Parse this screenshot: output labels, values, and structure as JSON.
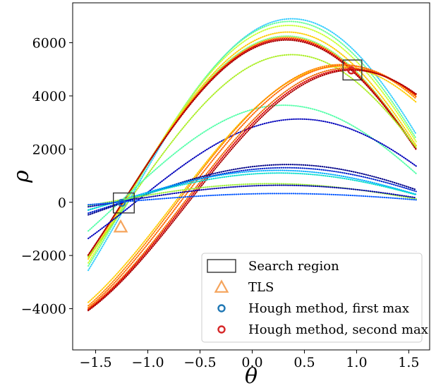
{
  "chart_data": {
    "type": "scatter",
    "title": "",
    "xlabel": "θ",
    "ylabel": "ρ",
    "xlim": [
      -1.72,
      1.7
    ],
    "ylim": [
      -5550,
      7500
    ],
    "grid": false,
    "legend_placement": "lower-right",
    "x_ticks": [
      {
        "value": -1.5,
        "label": "−1.5"
      },
      {
        "value": -1.0,
        "label": "−1.0"
      },
      {
        "value": -0.5,
        "label": "−0.5"
      },
      {
        "value": 0.0,
        "label": "0.0"
      },
      {
        "value": 0.5,
        "label": "0.5"
      },
      {
        "value": 1.0,
        "label": "1.0"
      },
      {
        "value": 1.5,
        "label": "1.5"
      }
    ],
    "y_ticks": [
      {
        "value": -4000,
        "label": "−4000"
      },
      {
        "value": -2000,
        "label": "−2000"
      },
      {
        "value": 0,
        "label": "0"
      },
      {
        "value": 2000,
        "label": "2000"
      },
      {
        "value": 4000,
        "label": "4000"
      },
      {
        "value": 6000,
        "label": "6000"
      }
    ],
    "curve_theta_range": [
      -1.5708,
      1.5708
    ],
    "sinusoid_curves": [
      {
        "amplitude": 6250,
        "phase": 0.33,
        "color": "#7fff7f"
      },
      {
        "amplitude": 6900,
        "phase": 0.38,
        "color": "#33ccff"
      },
      {
        "amplitude": 6800,
        "phase": 0.36,
        "color": "#66ff99"
      },
      {
        "amplitude": 6650,
        "phase": 0.35,
        "color": "#ccff33"
      },
      {
        "amplitude": 6400,
        "phase": 0.34,
        "color": "#ffcc00"
      },
      {
        "amplitude": 6200,
        "phase": 0.33,
        "color": "#ff8800"
      },
      {
        "amplitude": 6150,
        "phase": 0.33,
        "color": "#dd0000"
      },
      {
        "amplitude": 6100,
        "phase": 0.33,
        "color": "#aa0000"
      },
      {
        "amplitude": 5550,
        "phase": 0.38,
        "color": "#aaee22"
      },
      {
        "amplitude": 3650,
        "phase": 0.3,
        "color": "#55ffaa"
      },
      {
        "amplitude": 3130,
        "phase": 0.45,
        "color": "#0000bb"
      },
      {
        "amplitude": 5100,
        "phase": 0.83,
        "color": "#ffcc00"
      },
      {
        "amplitude": 5180,
        "phase": 0.85,
        "color": "#ff8800"
      },
      {
        "amplitude": 5150,
        "phase": 0.88,
        "color": "#ff6600"
      },
      {
        "amplitude": 5050,
        "phase": 0.92,
        "color": "#ee6600"
      },
      {
        "amplitude": 5000,
        "phase": 0.94,
        "color": "#dd0000"
      },
      {
        "amplitude": 4970,
        "phase": 0.96,
        "color": "#aa0000"
      },
      {
        "amplitude": 1420,
        "phase": 0.34,
        "color": "#000088"
      },
      {
        "amplitude": 1300,
        "phase": 0.32,
        "color": "#0022cc"
      },
      {
        "amplitude": 1200,
        "phase": 0.25,
        "color": "#00aaff"
      },
      {
        "amplitude": 1100,
        "phase": 0.26,
        "color": "#00ddcc"
      },
      {
        "amplitude": 700,
        "phase": 0.18,
        "color": "#99ee33"
      },
      {
        "amplitude": 640,
        "phase": 0.27,
        "color": "#0000aa"
      },
      {
        "amplitude": 330,
        "phase": 0.28,
        "color": "#0055ff"
      }
    ],
    "search_regions": [
      {
        "theta_range": [
          -1.33,
          -1.13
        ],
        "rho_range": [
          -400,
          350
        ],
        "color": "#333333"
      },
      {
        "theta_range": [
          0.87,
          1.05
        ],
        "rho_range": [
          4600,
          5350
        ],
        "color": "#333333"
      }
    ],
    "tls_point": {
      "theta": -1.26,
      "rho": -950,
      "color": "#f5a45c"
    },
    "hough_first_max": {
      "theta": -1.25,
      "rho": -20,
      "color": "#1f77b4"
    },
    "hough_second_max": {
      "theta": 0.95,
      "rho": 4960,
      "color": "#d62728"
    },
    "legend": [
      {
        "label": "Search region",
        "marker": "rect",
        "color": "#333333"
      },
      {
        "label": "TLS",
        "marker": "triangle",
        "color": "#f5a45c"
      },
      {
        "label": "Hough method, first max",
        "marker": "circle",
        "color": "#1f77b4"
      },
      {
        "label": "Hough method, second max",
        "marker": "circle",
        "color": "#d62728"
      }
    ]
  }
}
